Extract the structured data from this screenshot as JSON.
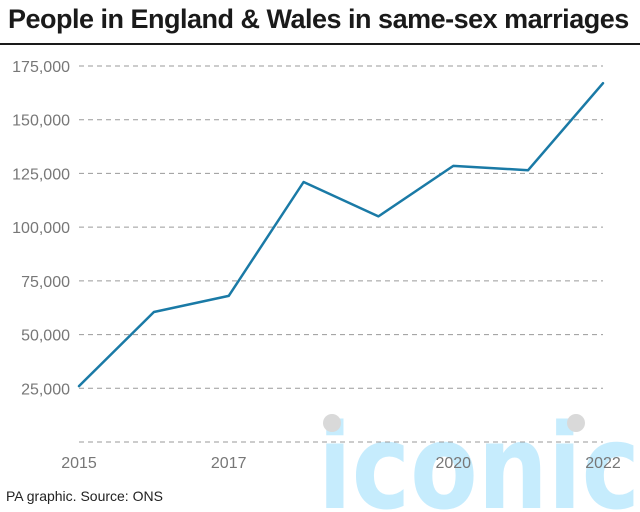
{
  "chart_data": {
    "type": "line",
    "title": "People in England & Wales in same-sex marriages",
    "xlabel": "",
    "ylabel": "",
    "x": [
      2015,
      2016,
      2017,
      2018,
      2019,
      2020,
      2021,
      2022
    ],
    "series": [
      {
        "values": [
          26000,
          60500,
          68000,
          121000,
          105000,
          128500,
          126500,
          167000
        ]
      }
    ],
    "xlim": [
      2015,
      2022
    ],
    "ylim": [
      0,
      175000
    ],
    "x_ticks": [
      {
        "value": 2015,
        "label": "2015"
      },
      {
        "value": 2017,
        "label": "2017"
      },
      {
        "value": 2020,
        "label": "2020"
      },
      {
        "value": 2022,
        "label": "2022"
      }
    ],
    "y_ticks": [
      {
        "value": 25000,
        "label": "25,000"
      },
      {
        "value": 50000,
        "label": "50,000"
      },
      {
        "value": 75000,
        "label": "75,000"
      },
      {
        "value": 100000,
        "label": "100,000"
      },
      {
        "value": 125000,
        "label": "125,000"
      },
      {
        "value": 150000,
        "label": "150,000"
      },
      {
        "value": 175000,
        "label": "175,000"
      }
    ],
    "grid": true,
    "grid_style": "dashed",
    "legend": "none",
    "line_color": "#1a7aa6",
    "watermark": "iconic",
    "watermark_color": "#b3e5fc",
    "watermark_dot_color": "#d9d9d9"
  },
  "footer": {
    "source": "PA graphic. Source: ONS"
  }
}
